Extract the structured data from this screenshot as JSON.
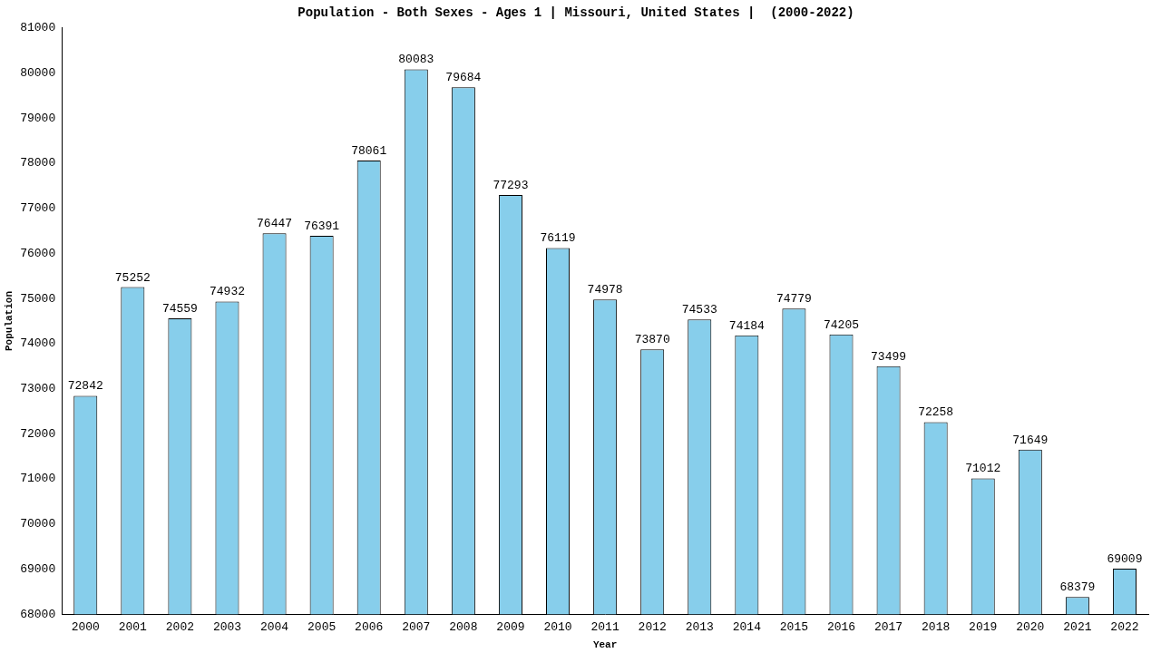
{
  "chart_data": {
    "type": "bar",
    "title": "Population - Both Sexes - Ages 1 | Missouri, United States |  (2000-2022)",
    "x_label": "Year",
    "y_label": "Population",
    "categories": [
      "2000",
      "2001",
      "2002",
      "2003",
      "2004",
      "2005",
      "2006",
      "2007",
      "2008",
      "2009",
      "2010",
      "2011",
      "2012",
      "2013",
      "2014",
      "2015",
      "2016",
      "2017",
      "2018",
      "2019",
      "2020",
      "2021",
      "2022"
    ],
    "values": [
      72842,
      75252,
      74559,
      74932,
      76447,
      76391,
      78061,
      80083,
      79684,
      77293,
      76119,
      74978,
      73870,
      74533,
      74184,
      74779,
      74205,
      73499,
      72258,
      71012,
      71649,
      68379,
      69009
    ],
    "color": "#87ceeb",
    "ylim": [
      68000,
      81000
    ],
    "yticks": [
      68000,
      69000,
      70000,
      71000,
      72000,
      73000,
      74000,
      75000,
      76000,
      77000,
      78000,
      79000,
      80000,
      81000
    ],
    "grid": false,
    "data_labels": true
  }
}
